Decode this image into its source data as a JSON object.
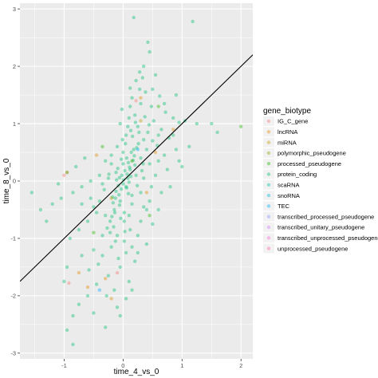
{
  "chart_data": {
    "type": "scatter",
    "xlabel": "time_4_vs_0",
    "ylabel": "time_8_vs_0",
    "xlim": [
      -1.75,
      2.2
    ],
    "ylim": [
      -3.1,
      3.1
    ],
    "x_ticks": [
      -1,
      0,
      1,
      2
    ],
    "y_ticks": [
      -3,
      -2,
      -1,
      0,
      1,
      2,
      3
    ],
    "grid": true,
    "point_alpha": 0.4,
    "reference_line": {
      "intercept": 0.0,
      "slope": 1.0,
      "color": "#000000"
    },
    "legend": {
      "title": "gene_biotype",
      "placement": "right",
      "entries": [
        {
          "name": "IG_C_gene",
          "color": "#F8766D"
        },
        {
          "name": "lncRNA",
          "color": "#E18A00"
        },
        {
          "name": "miRNA",
          "color": "#BE9C00"
        },
        {
          "name": "polymorphic_pseudogene",
          "color": "#8CAB00"
        },
        {
          "name": "processed_pseudogene",
          "color": "#24B700"
        },
        {
          "name": "protein_coding",
          "color": "#00BE70"
        },
        {
          "name": "scaRNA",
          "color": "#00C1AB"
        },
        {
          "name": "snoRNA",
          "color": "#00BBDA"
        },
        {
          "name": "TEC",
          "color": "#00ACFC"
        },
        {
          "name": "transcribed_processed_pseudogene",
          "color": "#8B93FF"
        },
        {
          "name": "transcribed_unitary_pseudogene",
          "color": "#D575FE"
        },
        {
          "name": "transcribed_unprocessed_pseudogene",
          "color": "#F962DD"
        },
        {
          "name": "unprocessed_pseudogene",
          "color": "#FF65AC"
        }
      ]
    },
    "series": [
      {
        "name": "protein_coding",
        "points": [
          [
            0.18,
            2.85
          ],
          [
            1.18,
            2.78
          ],
          [
            0.42,
            2.42
          ],
          [
            0.35,
            2.0
          ],
          [
            0.45,
            2.25
          ],
          [
            0.28,
            1.9
          ],
          [
            0.55,
            1.85
          ],
          [
            0.22,
            1.75
          ],
          [
            0.12,
            1.62
          ],
          [
            0.38,
            1.55
          ],
          [
            0.62,
            1.48
          ],
          [
            0.3,
            1.35
          ],
          [
            0.48,
            1.3
          ],
          [
            0.15,
            1.45
          ],
          [
            0.72,
            1.2
          ],
          [
            0.85,
            1.1
          ],
          [
            0.52,
            1.05
          ],
          [
            0.95,
            1.02
          ],
          [
            1.05,
            1.05
          ],
          [
            0.65,
            0.9
          ],
          [
            0.42,
            0.85
          ],
          [
            0.78,
            0.75
          ],
          [
            1.12,
            0.6
          ],
          [
            0.9,
            0.55
          ],
          [
            0.58,
            0.62
          ],
          [
            0.35,
            0.72
          ],
          [
            0.25,
            0.95
          ],
          [
            0.1,
            1.1
          ],
          [
            -0.05,
            1.0
          ],
          [
            0.05,
            0.8
          ],
          [
            0.18,
            0.55
          ],
          [
            0.3,
            0.4
          ],
          [
            0.45,
            0.3
          ],
          [
            0.6,
            0.35
          ],
          [
            0.75,
            0.2
          ],
          [
            -0.1,
            0.6
          ],
          [
            -0.2,
            0.45
          ],
          [
            -0.3,
            0.35
          ],
          [
            0.0,
            0.3
          ],
          [
            0.12,
            0.2
          ],
          [
            0.22,
            0.1
          ],
          [
            0.35,
            0.05
          ],
          [
            -0.12,
            0.15
          ],
          [
            -0.25,
            0.05
          ],
          [
            -0.4,
            0.1
          ],
          [
            -0.55,
            0.0
          ],
          [
            -0.7,
            -0.1
          ],
          [
            -0.85,
            -0.2
          ],
          [
            -1.05,
            -0.3
          ],
          [
            -1.2,
            -0.4
          ],
          [
            -1.55,
            -0.2
          ],
          [
            0.05,
            -0.1
          ],
          [
            0.15,
            -0.25
          ],
          [
            0.3,
            -0.2
          ],
          [
            0.45,
            -0.35
          ],
          [
            0.6,
            -0.5
          ],
          [
            -0.05,
            -0.35
          ],
          [
            -0.15,
            -0.5
          ],
          [
            -0.3,
            -0.6
          ],
          [
            -0.45,
            -0.55
          ],
          [
            -0.6,
            -0.7
          ],
          [
            -0.75,
            -0.85
          ],
          [
            -0.9,
            -1.0
          ],
          [
            0.02,
            -0.7
          ],
          [
            0.12,
            -0.85
          ],
          [
            0.25,
            -0.95
          ],
          [
            0.4,
            -1.1
          ],
          [
            -0.1,
            -0.95
          ],
          [
            -0.2,
            -1.15
          ],
          [
            -0.35,
            -1.3
          ],
          [
            -0.5,
            -1.2
          ],
          [
            0.05,
            -1.25
          ],
          [
            0.2,
            -1.4
          ],
          [
            -0.05,
            -1.5
          ],
          [
            -0.25,
            -1.65
          ],
          [
            -0.45,
            -1.8
          ],
          [
            -0.6,
            -2.0
          ],
          [
            -0.15,
            -1.9
          ],
          [
            0.1,
            -1.75
          ],
          [
            -0.75,
            -2.15
          ],
          [
            -0.85,
            -2.35
          ],
          [
            -0.5,
            -2.3
          ],
          [
            -0.3,
            -2.55
          ],
          [
            -0.95,
            -2.6
          ],
          [
            -0.85,
            -2.85
          ],
          [
            -0.1,
            -2.2
          ],
          [
            0.0,
            -0.05
          ],
          [
            0.08,
            0.05
          ],
          [
            -0.02,
            0.1
          ],
          [
            0.1,
            -0.02
          ],
          [
            -0.08,
            -0.08
          ],
          [
            0.03,
            0.18
          ],
          [
            -0.12,
            -0.18
          ],
          [
            0.2,
            0.28
          ],
          [
            -0.18,
            -0.28
          ],
          [
            0.06,
            0.4
          ],
          [
            -0.06,
            -0.42
          ],
          [
            0.14,
            0.5
          ],
          [
            -0.14,
            -0.55
          ],
          [
            0.26,
            0.65
          ],
          [
            -0.22,
            -0.7
          ],
          [
            0.04,
            0.65
          ],
          [
            -0.04,
            -0.65
          ],
          [
            0.16,
            0.78
          ],
          [
            -0.16,
            -0.8
          ],
          [
            0.09,
            -0.22
          ],
          [
            -0.09,
            0.22
          ],
          [
            0.32,
            0.18
          ],
          [
            -0.32,
            -0.15
          ],
          [
            0.24,
            -0.08
          ],
          [
            -0.24,
            0.12
          ],
          [
            0.4,
            0.55
          ],
          [
            -0.4,
            -0.35
          ],
          [
            0.5,
            0.7
          ],
          [
            -0.5,
            -0.45
          ],
          [
            0.02,
            -0.55
          ],
          [
            0.0,
            0.5
          ],
          [
            0.12,
            1.3
          ],
          [
            0.2,
            1.15
          ],
          [
            0.08,
            0.95
          ],
          [
            -0.02,
            1.25
          ],
          [
            0.28,
            1.6
          ],
          [
            0.33,
            1.8
          ],
          [
            0.5,
            1.6
          ],
          [
            0.02,
            -1.05
          ],
          [
            -0.08,
            -1.35
          ],
          [
            0.15,
            -1.15
          ],
          [
            -0.22,
            -0.9
          ],
          [
            0.3,
            -0.7
          ],
          [
            0.55,
            0.1
          ],
          [
            0.7,
            0.45
          ],
          [
            0.85,
            0.8
          ],
          [
            1.25,
            1.0
          ],
          [
            1.6,
            0.85
          ],
          [
            1.5,
            1.0
          ],
          [
            0.95,
            0.35
          ],
          [
            -0.65,
            0.4
          ],
          [
            -0.8,
            0.25
          ],
          [
            -1.1,
            -0.05
          ],
          [
            -0.95,
            0.15
          ],
          [
            -0.7,
            -0.4
          ],
          [
            -0.55,
            -0.3
          ],
          [
            -0.35,
            -0.05
          ],
          [
            0.65,
            -0.2
          ],
          [
            0.8,
            -0.1
          ],
          [
            0.4,
            -0.5
          ],
          [
            0.5,
            -0.75
          ],
          [
            -0.28,
            -2.0
          ],
          [
            -0.42,
            -1.45
          ],
          [
            -0.58,
            -1.55
          ],
          [
            -0.7,
            -1.3
          ],
          [
            0.15,
            -1.9
          ],
          [
            0.05,
            -2.05
          ],
          [
            -0.05,
            -2.35
          ],
          [
            0.07,
            0.12
          ],
          [
            0.11,
            0.24
          ],
          [
            -0.03,
            -0.14
          ],
          [
            0.17,
            0.36
          ],
          [
            -0.13,
            -0.3
          ],
          [
            0.19,
            0.44
          ],
          [
            -0.17,
            -0.38
          ],
          [
            0.23,
            0.58
          ],
          [
            0.01,
            0.02
          ],
          [
            0.06,
            -0.12
          ],
          [
            -0.06,
            0.06
          ],
          [
            0.13,
            0.08
          ],
          [
            -0.11,
            0.02
          ],
          [
            0.09,
            0.32
          ],
          [
            -0.07,
            -0.24
          ],
          [
            0.27,
            0.85
          ],
          [
            0.21,
            1.02
          ],
          [
            0.13,
            0.88
          ],
          [
            -0.01,
            0.72
          ],
          [
            0.37,
            1.12
          ],
          [
            0.44,
            0.98
          ],
          [
            -0.19,
            -0.62
          ],
          [
            -0.27,
            -0.82
          ],
          [
            -0.13,
            -1.05
          ],
          [
            0.03,
            -0.88
          ],
          [
            0.1,
            -0.6
          ],
          [
            -0.03,
            0.38
          ],
          [
            0.15,
            -0.4
          ],
          [
            -0.2,
            0.3
          ],
          [
            0.34,
            0.3
          ],
          [
            -0.35,
            -0.95
          ],
          [
            0.6,
            0.8
          ],
          [
            0.7,
            1.35
          ],
          [
            0.9,
            1.5
          ],
          [
            1.0,
            0.25
          ],
          [
            -1.3,
            -0.7
          ],
          [
            -1.4,
            -0.5
          ],
          [
            -0.95,
            -1.5
          ],
          [
            -1.0,
            -1.75
          ],
          [
            0.25,
            -1.25
          ],
          [
            0.35,
            -0.45
          ],
          [
            0.48,
            -0.1
          ]
        ]
      },
      {
        "name": "lncRNA",
        "points": [
          [
            -0.95,
            0.15
          ],
          [
            0.55,
            0.5
          ],
          [
            -0.3,
            -1.7
          ],
          [
            0.3,
            1.45
          ],
          [
            -0.6,
            -1.85
          ],
          [
            0.4,
            -0.2
          ],
          [
            -0.45,
            0.45
          ],
          [
            0.85,
            0.9
          ],
          [
            -0.2,
            -2.05
          ],
          [
            -0.75,
            -1.6
          ]
        ]
      },
      {
        "name": "IG_C_gene",
        "points": [
          [
            -0.92,
            -1.78
          ],
          [
            -0.1,
            -1.6
          ],
          [
            0.22,
            1.4
          ],
          [
            -1.0,
            0.1
          ]
        ]
      },
      {
        "name": "processed_pseudogene",
        "points": [
          [
            2.0,
            0.95
          ],
          [
            0.6,
            1.3
          ],
          [
            -0.35,
            0.6
          ],
          [
            0.15,
            0.35
          ],
          [
            -0.5,
            -0.9
          ],
          [
            0.45,
            -0.6
          ]
        ]
      },
      {
        "name": "miRNA",
        "points": [
          [
            0.3,
            1.05
          ],
          [
            -0.2,
            -0.3
          ]
        ]
      },
      {
        "name": "TEC",
        "points": [
          [
            0.25,
            0.55
          ],
          [
            -0.4,
            -1.9
          ]
        ]
      }
    ]
  }
}
